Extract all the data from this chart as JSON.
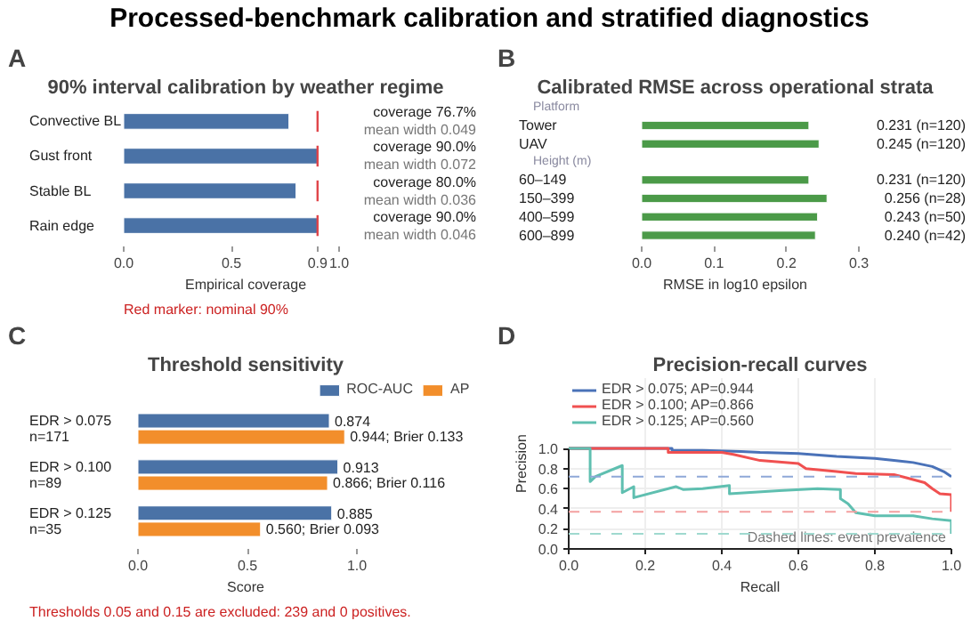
{
  "chart_data": [
    {
      "type": "other",
      "title": "Processed-benchmark calibration and stratified diagnostics"
    },
    {
      "type": "bar",
      "orientation": "horizontal",
      "title": "90% interval calibration by weather regime",
      "annotations": [
        "A",
        "Red marker: nominal 90%"
      ],
      "categories": [
        "Convective BL",
        "Gust front",
        "Stable BL",
        "Rain edge"
      ],
      "values": [
        0.767,
        0.9,
        0.8,
        0.9
      ],
      "color": "#4a72a6",
      "value_labels": [
        "coverage 76.7%\nmean width 0.049",
        "coverage 90.0%\nmean width 0.072",
        "coverage 80.0%\nmean width 0.036",
        "coverage 90.0%\nmean width 0.046"
      ],
      "xlabel": "Empirical coverage",
      "xlim": [
        0,
        1
      ],
      "xticks": [
        {
          "value": 0,
          "label": "0.0"
        },
        {
          "value": 0.5,
          "label": "0.5"
        },
        0.9,
        {
          "value": 1,
          "label": "1.0"
        }
      ],
      "ref_lines": [
        {
          "axis": "x",
          "value": 0.9,
          "color": "#e0454a"
        }
      ]
    },
    {
      "type": "bar",
      "orientation": "horizontal",
      "title": "Calibrated RMSE across operational strata",
      "annotations": [
        "B",
        "Platform",
        "Height (m)"
      ],
      "categories": [
        "Tower",
        "UAV",
        "60–149",
        "150–399",
        "400–599",
        "600–899"
      ],
      "values": [
        0.231,
        0.245,
        0.231,
        0.256,
        0.243,
        0.24
      ],
      "color": "#4b9a48",
      "value_labels": [
        "0.231 (n=120)",
        "0.245 (n=120)",
        "0.231 (n=120)",
        "0.256 (n=28)",
        "0.243 (n=50)",
        "0.240 (n=42)"
      ],
      "xlabel": "RMSE in log10 epsilon",
      "xlim": [
        0,
        0.3
      ],
      "xticks": [
        {
          "value": 0,
          "label": "0.0"
        },
        0.1,
        0.2,
        0.3
      ]
    },
    {
      "type": "bar",
      "orientation": "horizontal",
      "title": "Threshold sensitivity",
      "annotations": [
        "C",
        "Thresholds 0.05 and 0.15 are excluded: 239 and 0 positives."
      ],
      "categories": [
        "EDR > 0.075\nn=171",
        "EDR > 0.100\nn=89",
        "EDR > 0.125\nn=35"
      ],
      "legend": "top right",
      "xlabel": "Score",
      "xlim": [
        0,
        1
      ],
      "xticks": [
        {
          "value": 0,
          "label": "0.0"
        },
        0.5,
        {
          "value": 1,
          "label": "1.0"
        }
      ],
      "series": [
        {
          "name": "ROC-AUC",
          "color": "#4a72a6",
          "values": [
            0.874,
            0.913,
            0.885
          ],
          "value_labels": [
            "0.874",
            "0.913",
            "0.885"
          ]
        },
        {
          "name": "AP",
          "color": "#f28e2b",
          "values": [
            0.944,
            0.866,
            0.56
          ],
          "value_labels": [
            "0.944; Brier 0.133",
            "0.866; Brier 0.116",
            "0.560; Brier 0.093"
          ]
        }
      ]
    },
    {
      "type": "line",
      "title": "Precision-recall curves",
      "annotations": [
        "D",
        "Dashed lines: event prevalence"
      ],
      "xlabel": "Recall",
      "ylabel": "Precision",
      "xlim": [
        0,
        1
      ],
      "ylim": [
        0,
        1
      ],
      "xticks": [
        {
          "value": 0,
          "label": "0.0"
        },
        0.2,
        0.4,
        0.6,
        0.8,
        {
          "value": 1,
          "label": "1.0"
        }
      ],
      "yticks": [
        {
          "value": 0,
          "label": "0.0"
        },
        0.2,
        0.4,
        0.6,
        0.8,
        {
          "value": 1,
          "label": "1.0"
        }
      ],
      "grid": true,
      "legend": "top left",
      "series": [
        {
          "name": "EDR > 0.075; AP=0.944",
          "color": "#4a72b8",
          "x": [
            0,
            0.27,
            0.27,
            0.35,
            0.45,
            0.5,
            0.6,
            0.7,
            0.8,
            0.85,
            0.9,
            0.95,
            0.98,
            1.0
          ],
          "values": [
            1,
            1,
            0.98,
            0.98,
            0.97,
            0.96,
            0.95,
            0.92,
            0.9,
            0.88,
            0.86,
            0.82,
            0.77,
            0.72
          ]
        },
        {
          "name": "EDR > 0.100; AP=0.866",
          "color": "#f05050",
          "x": [
            0,
            0.26,
            0.26,
            0.4,
            0.43,
            0.5,
            0.6,
            0.62,
            0.7,
            0.75,
            0.85,
            0.88,
            0.93,
            0.95,
            0.97,
            1.0,
            1.0
          ],
          "values": [
            1,
            1,
            0.96,
            0.96,
            0.94,
            0.88,
            0.85,
            0.8,
            0.77,
            0.75,
            0.74,
            0.71,
            0.66,
            0.6,
            0.55,
            0.54,
            0.37
          ]
        },
        {
          "name": "EDR > 0.125; AP=0.560",
          "color": "#5fbfb0",
          "x": [
            0,
            0.056,
            0.056,
            0.07,
            0.14,
            0.14,
            0.17,
            0.17,
            0.28,
            0.3,
            0.35,
            0.42,
            0.42,
            0.55,
            0.65,
            0.71,
            0.71,
            0.73,
            0.75,
            0.8,
            0.9,
            0.95,
            1.0,
            1.0
          ],
          "values": [
            1,
            1,
            0.67,
            0.72,
            0.83,
            0.56,
            0.62,
            0.51,
            0.62,
            0.59,
            0.6,
            0.63,
            0.55,
            0.58,
            0.6,
            0.59,
            0.5,
            0.45,
            0.36,
            0.33,
            0.33,
            0.3,
            0.28,
            0.15
          ]
        }
      ],
      "ref_lines": [
        {
          "axis": "y",
          "value": 0.72,
          "color": "#8fa8d8",
          "line_style": "dashed"
        },
        {
          "axis": "y",
          "value": 0.37,
          "color": "#f4a0a0",
          "line_style": "dashed"
        },
        {
          "axis": "y",
          "value": 0.15,
          "color": "#9fd9cf",
          "line_style": "dashed"
        }
      ]
    }
  ]
}
